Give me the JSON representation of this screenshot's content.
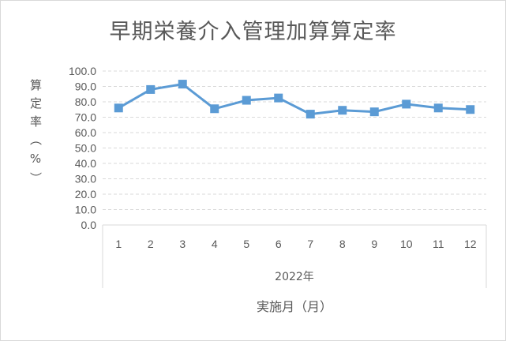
{
  "chart_data": {
    "type": "line",
    "title": "早期栄養介入管理加算算定率",
    "ylabel": "算定率（%）",
    "xlabel": "実施月（月）",
    "x_group_label": "2022年",
    "categories": [
      "1",
      "2",
      "3",
      "4",
      "5",
      "6",
      "7",
      "8",
      "9",
      "10",
      "11",
      "12"
    ],
    "series": [
      {
        "values": [
          76.0,
          88.0,
          91.5,
          75.5,
          81.0,
          82.5,
          72.0,
          74.5,
          73.5,
          78.5,
          76.0,
          75.0
        ]
      }
    ],
    "ylim": [
      0,
      100
    ],
    "yticks": [
      "0.0",
      "10.0",
      "20.0",
      "30.0",
      "40.0",
      "50.0",
      "60.0",
      "70.0",
      "80.0",
      "90.0",
      "100.0"
    ],
    "grid": true,
    "legend": "none",
    "colors": {
      "series": "#5b9bd5",
      "grid": "#d9d9d9",
      "text": "#595959"
    }
  }
}
